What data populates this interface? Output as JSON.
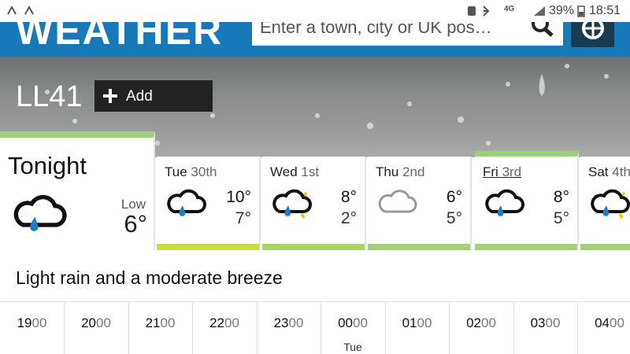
{
  "status_bar": {
    "network": "4G",
    "battery": "39%",
    "time": "18:51"
  },
  "header": {
    "title": "WEATHER",
    "search_placeholder": "Enter a town, city or UK pos…"
  },
  "location": {
    "name": "LL41",
    "add_button": "Add"
  },
  "tonight": {
    "label": "Tonight",
    "low_label": "Low",
    "low": "6°"
  },
  "days": [
    {
      "day": "Tue",
      "date": "30th",
      "high": "10°",
      "low": "7°"
    },
    {
      "day": "Wed",
      "date": "1st",
      "high": "8°",
      "low": "2°"
    },
    {
      "day": "Thu",
      "date": "2nd",
      "high": "6°",
      "low": "5°"
    },
    {
      "day": "Fri",
      "date": "3rd",
      "high": "8°",
      "low": "5°"
    },
    {
      "day": "Sat",
      "date": "4th"
    }
  ],
  "summary": "Light rain and a moderate breeze",
  "hours": [
    {
      "hour": "19",
      "minutes": "00"
    },
    {
      "hour": "20",
      "minutes": "00"
    },
    {
      "hour": "21",
      "minutes": "00"
    },
    {
      "hour": "22",
      "minutes": "00"
    },
    {
      "hour": "23",
      "minutes": "00"
    },
    {
      "hour": "00",
      "minutes": "00",
      "day": "Tue"
    },
    {
      "hour": "01",
      "minutes": "00"
    },
    {
      "hour": "02",
      "minutes": "00"
    },
    {
      "hour": "03",
      "minutes": "00"
    },
    {
      "hour": "04",
      "minutes": "00"
    }
  ]
}
